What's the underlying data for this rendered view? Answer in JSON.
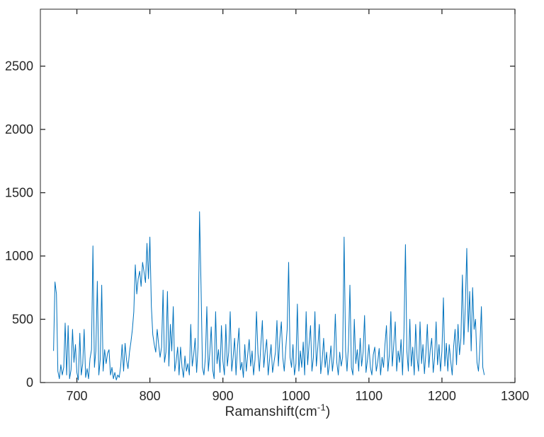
{
  "figure": {
    "background": "#ffffff",
    "axis_color": "#262626",
    "tick_label_color": "#262626"
  },
  "labels": {
    "xlabel_main": "Ramanshift(cm",
    "xlabel_sup": "-1",
    "xlabel_close": ")"
  },
  "chart_data": {
    "type": "line",
    "title": "",
    "xlabel": "Ramanshift(cm^-1)",
    "ylabel": "",
    "legend": "none",
    "grid": false,
    "box": true,
    "tick_direction": "in",
    "xlim": [
      650,
      1300
    ],
    "ylim": [
      0,
      2950
    ],
    "x_ticks": [
      700,
      800,
      900,
      1000,
      1100,
      1200,
      1300
    ],
    "y_ticks": [
      0,
      500,
      1000,
      1500,
      2000,
      2500
    ],
    "line_color": "#0072BD",
    "line_width": 1,
    "x_start": 668,
    "x_step": 2,
    "values": [
      250,
      795,
      700,
      90,
      30,
      140,
      60,
      120,
      470,
      60,
      450,
      30,
      100,
      420,
      160,
      300,
      80,
      20,
      390,
      60,
      150,
      420,
      40,
      110,
      30,
      190,
      260,
      1080,
      120,
      250,
      800,
      60,
      180,
      770,
      90,
      260,
      150,
      230,
      260,
      60,
      120,
      30,
      80,
      20,
      60,
      40,
      130,
      300,
      90,
      310,
      180,
      110,
      240,
      320,
      420,
      560,
      930,
      700,
      820,
      880,
      760,
      950,
      870,
      790,
      1100,
      820,
      1150,
      600,
      380,
      300,
      240,
      420,
      300,
      200,
      280,
      730,
      160,
      240,
      720,
      130,
      460,
      250,
      600,
      90,
      170,
      280,
      60,
      280,
      120,
      40,
      210,
      90,
      150,
      60,
      460,
      130,
      220,
      350,
      80,
      280,
      1350,
      770,
      120,
      60,
      200,
      600,
      90,
      230,
      440,
      100,
      30,
      560,
      150,
      260,
      80,
      450,
      170,
      60,
      460,
      130,
      240,
      560,
      90,
      200,
      350,
      60,
      280,
      430,
      100,
      160,
      40,
      300,
      90,
      220,
      340,
      130,
      250,
      60,
      180,
      560,
      230,
      90,
      300,
      490,
      120,
      250,
      340,
      60,
      190,
      300,
      80,
      160,
      240,
      490,
      130,
      350,
      480,
      200,
      90,
      260,
      420,
      950,
      200,
      120,
      300,
      60,
      150,
      620,
      90,
      250,
      120,
      320,
      60,
      560,
      140,
      300,
      450,
      90,
      200,
      560,
      130,
      280,
      460,
      70,
      180,
      350,
      120,
      240,
      60,
      150,
      290,
      90,
      210,
      540,
      160,
      60,
      240,
      130,
      200,
      1150,
      250,
      90,
      300,
      770,
      120,
      60,
      500,
      150,
      260,
      90,
      350,
      130,
      240,
      530,
      80,
      180,
      300,
      120,
      60,
      220,
      280,
      90,
      160,
      270,
      60,
      200,
      120,
      300,
      450,
      90,
      220,
      560,
      130,
      300,
      480,
      90,
      250,
      160,
      340,
      60,
      400,
      1090,
      250,
      90,
      500,
      130,
      280,
      60,
      460,
      190,
      90,
      480,
      150,
      300,
      70,
      230,
      460,
      120,
      260,
      350,
      80,
      200,
      480,
      140,
      300,
      90,
      250,
      670,
      130,
      310,
      90,
      300,
      170,
      60,
      280,
      420,
      140,
      460,
      220,
      350,
      850,
      300,
      600,
      1060,
      400,
      720,
      250,
      750,
      420,
      500,
      160,
      90,
      280,
      600,
      120,
      60
    ]
  }
}
